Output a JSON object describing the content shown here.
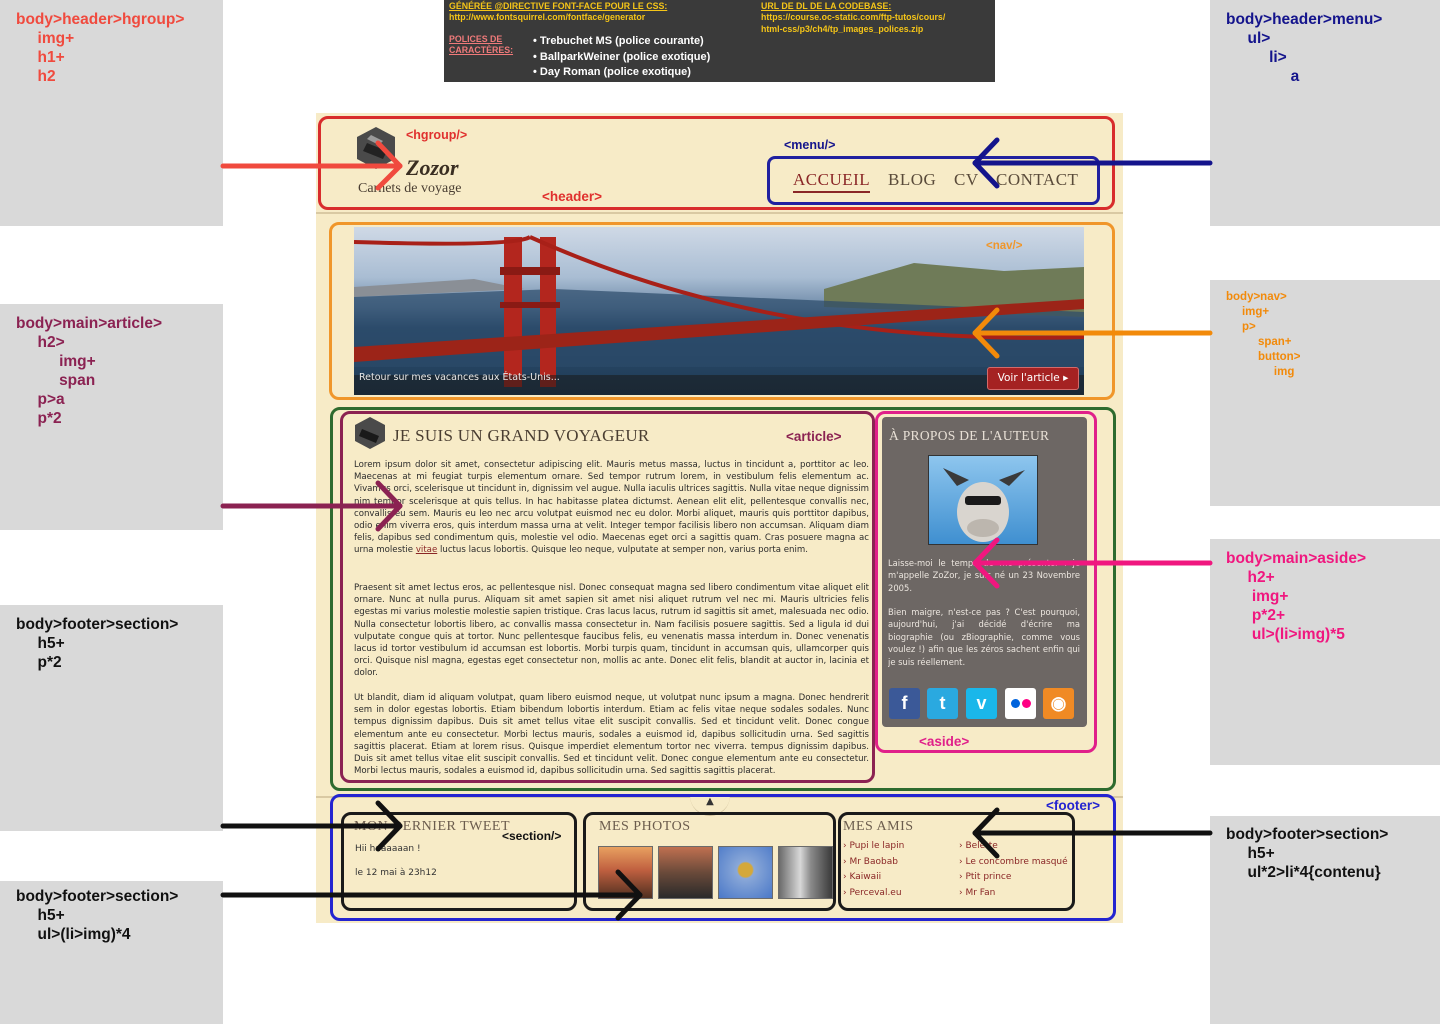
{
  "info_box": {
    "fontface_heading": "GÉNÉRÉE @DIRECTIVE FONT-FACE POUR LE CSS:",
    "fontface_url": "http://www.fontsquirrel.com/fontface/generator",
    "codebase_heading": "URL DE DL DE LA CODEBASE:",
    "codebase_url_line1": "https://course.oc-static.com/ftp-tutos/cours/",
    "codebase_url_line2": "html-css/p3/ch4/tp_images_polices.zip",
    "fonts_label_line1": "POLICES DE",
    "fonts_label_line2": "CARACTÈRES:",
    "fonts": [
      "Trebuchet MS  (police courante)",
      "BallparkWeiner  (police exotique)",
      "Day Roman  (police exotique)"
    ]
  },
  "annotations": {
    "header_hgroup": {
      "lines": [
        "body>header>hgroup>",
        "     img+",
        "     h1+",
        "     h2"
      ],
      "color": "#f04a3e"
    },
    "header_menu": {
      "lines": [
        "body>header>menu>",
        "     ul>",
        "          li>",
        "               a"
      ],
      "color": "#14148c"
    },
    "nav": {
      "lines": [
        "body>nav>",
        "     img+",
        "     p>",
        "          span+",
        "          button>",
        "               img"
      ],
      "color": "#f28a0a"
    },
    "article": {
      "lines": [
        "body>main>article>",
        "     h2>",
        "          img+",
        "          span",
        "     p>a",
        "     p*2"
      ],
      "color": "#8b2252"
    },
    "aside": {
      "lines": [
        "body>main>aside>",
        "     h2+",
        "      img+",
        "      p*2+",
        "      ul>(li>img)*5"
      ],
      "color": "#f0177f"
    },
    "footer_section_1": {
      "lines": [
        "body>footer>section>",
        "     h5+",
        "     p*2"
      ],
      "color": "#111111"
    },
    "footer_section_2": {
      "lines": [
        "body>footer>section>",
        "     h5+",
        "     ul>(li>img)*4"
      ],
      "color": "#111111"
    },
    "footer_section_3": {
      "lines": [
        "body>footer>section>",
        "     h5+",
        "     ul*2>li*4{contenu}"
      ],
      "color": "#111111"
    }
  },
  "mockup": {
    "tags": {
      "hgroup": "<hgroup/>",
      "header": "<header>",
      "menu": "<menu/>",
      "nav": "<nav/>",
      "article": "<article>",
      "aside": "<aside>",
      "section": "<section/>",
      "footer": "<footer>"
    },
    "logo_title": "Zozor",
    "logo_subtitle": "Carnets de voyage",
    "menu_items": [
      "ACCUEIL",
      "BLOG",
      "CV",
      "CONTACT"
    ],
    "banner_caption": "Retour sur mes vacances aux États-Unis...",
    "banner_button": "Voir l'article ▸",
    "article_title": "JE SUIS UN GRAND VOYAGEUR",
    "article_link_word": "vitae",
    "article_paragraphs": [
      "Lorem ipsum dolor sit amet, consectetur adipiscing elit. Mauris metus massa, luctus in tincidunt a, porttitor ac leo. Maecenas at mi feugiat turpis elementum ornare. Sed tempor rutrum lorem, in vestibulum felis elementum ac. Vivamus orci, scelerisque ut tincidunt in, dignissim vel augue. Nulla iaculis ultrices sagittis. Nulla vitae neque dignissim nim tempor scelerisque at quis tellus. In hac habitasse platea dictumst. Aenean elit elit, pellentesque convallis nec, convallis eu sem. Mauris eu leo nec arcu volutpat euismod nec eu dolor. Morbi aliquet, mauris quis porttitor dapibus, odio enim viverra eros, quis interdum massa urna at velit. Integer tempor facilisis libero non accumsan. Aliquam diam felis, dapibus sed condimentum quis, molestie vel odio. Maecenas eget orci a sagittis quam. Cras posuere magna ac urna molestie",
      "luctus lacus lobortis. Quisque leo neque, vulputate at semper non, varius porta enim.",
      "Praesent sit amet lectus eros, ac pellentesque nisl. Donec consequat magna sed libero condimentum vitae aliquet elit ornare. Nunc at nulla purus. Aliquam sit amet sapien sit amet nisi aliquet rutrum vel nec mi. Mauris ultricies felis egestas mi varius molestie molestie sapien tristique. Cras lacus lacus, rutrum id sagittis sit amet, malesuada nec odio. Nulla consectetur lobortis libero, ac convallis massa consectetur in. Nam facilisis posuere sagittis. Sed a ligula id dui vulputate congue quis at tortor. Nunc pellentesque faucibus felis, eu venenatis massa interdum in. Donec venenatis lacus id tortor vestibulum id accumsan est lobortis. Morbi turpis quam, tincidunt in accumsan quis, ullamcorper quis orci. Quisque nisl magna, egestas eget consectetur non, mollis ac ante. Donec elit felis, blandit at auctor in, lacinia et dolor.",
      "Ut blandit, diam id aliquam volutpat, quam libero euismod neque, ut volutpat nunc ipsum a magna. Donec hendrerit sem in dolor egestas lobortis. Etiam bibendum lobortis interdum. Etiam ac felis vitae neque sodales sodales. Nunc tempus dignissim dapibus. Duis sit amet tellus vitae elit suscipit convallis. Sed et tincidunt velit. Donec congue elementum ante eu consectetur. Morbi lectus mauris, sodales a euismod id, dapibus sollicitudin urna. Sed sagittis sagittis placerat. Etiam at lorem risus. Quisque imperdiet elementum tortor nec viverra. tempus dignissim dapibus. Duis sit amet tellus vitae elit suscipit convallis. Sed et tincidunt velit. Donec congue elementum ante eu consectetur. Morbi lectus mauris, sodales a euismod id, dapibus sollicitudin urna. Sed sagittis sagittis placerat."
    ],
    "aside_title": "À PROPOS DE L'AUTEUR",
    "aside_p1": "Laisse-moi le temps de me présenter : je m'appelle ZoZor, je suis né un 23 Novembre 2005.",
    "aside_p2": "Bien maigre, n'est-ce pas ? C'est pourquoi, aujourd'hui, j'ai décidé d'écrire ma biographie (ou zBiographie, comme vous voulez !) afin que les zéros sachent enfin qui je suis réellement.",
    "social_icons": [
      {
        "name": "facebook-icon",
        "glyph": "f",
        "color": "#3b5998"
      },
      {
        "name": "twitter-icon",
        "glyph": "t",
        "color": "#2aa9e0"
      },
      {
        "name": "vimeo-icon",
        "glyph": "v",
        "color": "#1ab7ea"
      },
      {
        "name": "flickr-icon",
        "glyph": "••",
        "color": "#ffffff"
      },
      {
        "name": "rss-icon",
        "glyph": "◉",
        "color": "#f08a24"
      }
    ],
    "footer_tweet_title": "MON DERNIER TWEET",
    "footer_tweet_text": "Hii haaaaaan !",
    "footer_tweet_date": "le 12 mai à 23h12",
    "footer_photos_title": "MES PHOTOS",
    "footer_friends_title": "MES AMIS",
    "friends_col1": [
      "Pupi le lapin",
      "Mr Baobab",
      "Kaiwaii",
      "Perceval.eu"
    ],
    "friends_col2": [
      "Belette",
      "Le concombre masqué",
      "Ptit prince",
      "Mr Fan"
    ]
  }
}
